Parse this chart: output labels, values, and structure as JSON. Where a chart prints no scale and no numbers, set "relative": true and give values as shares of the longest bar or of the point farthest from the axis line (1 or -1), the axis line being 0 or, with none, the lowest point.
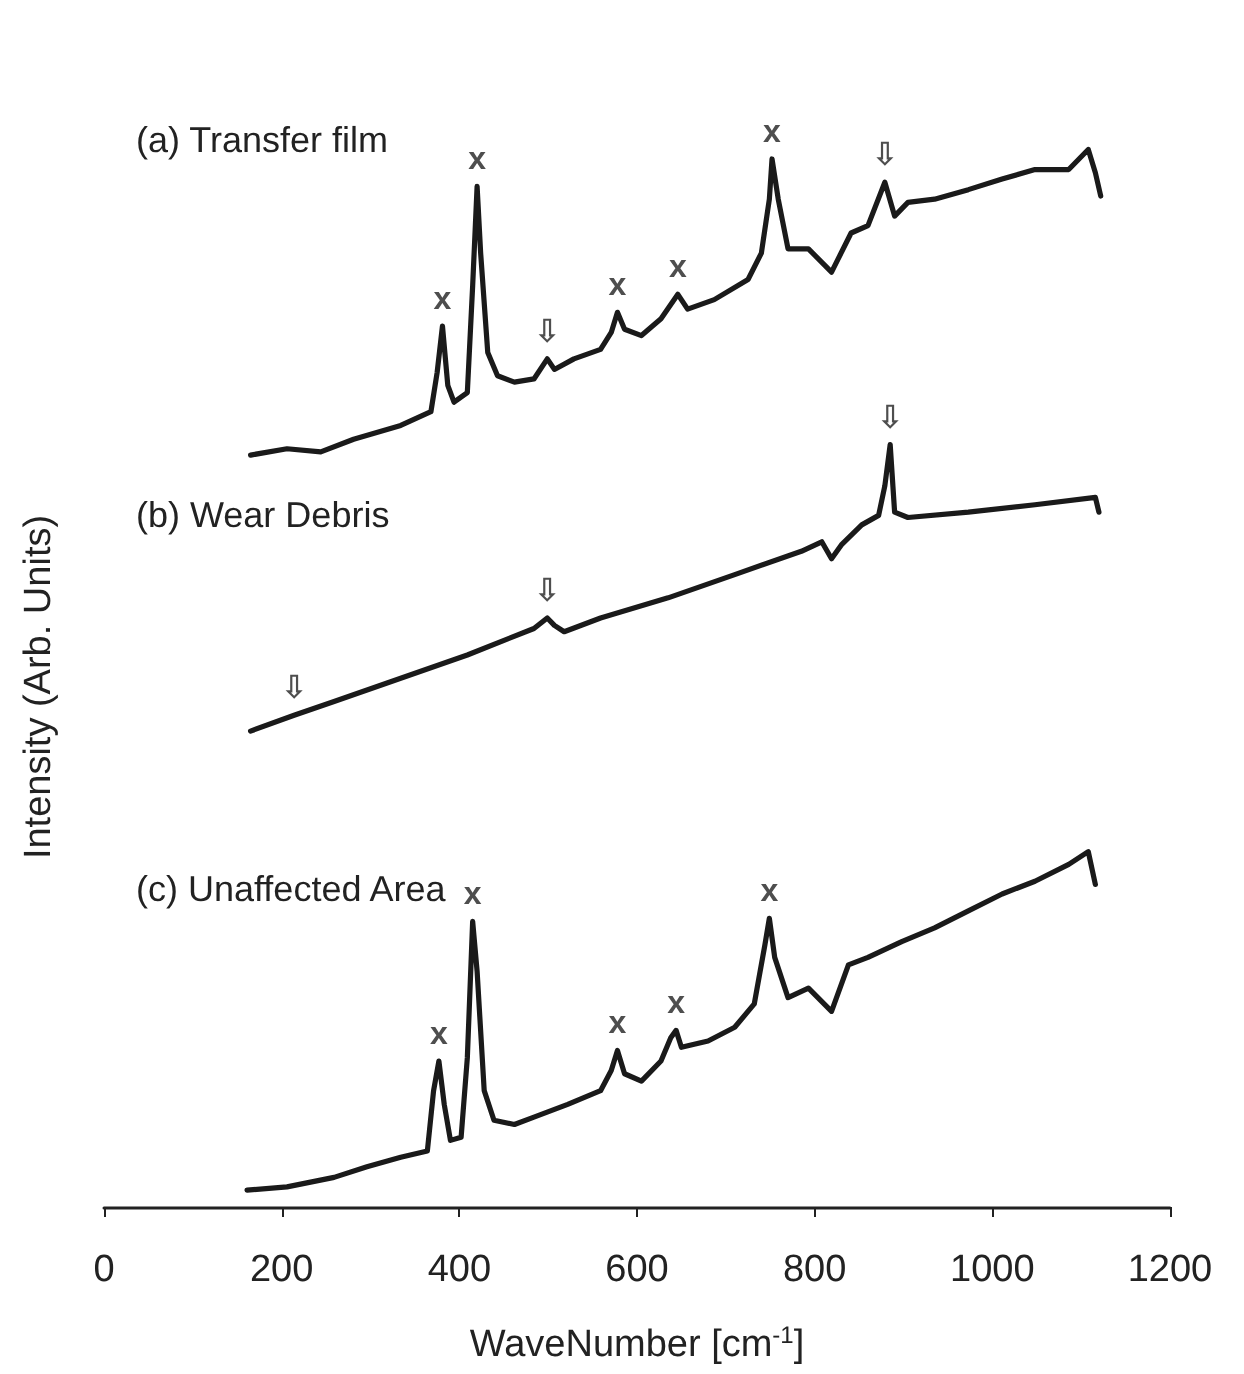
{
  "chart_data": {
    "type": "line",
    "relative": true,
    "xlabel": "WaveNumber [cm$^{-1}$]",
    "ylabel": "Intensity (Arb. Units)",
    "xlim": [
      0,
      1200
    ],
    "xticks": [
      0,
      200,
      400,
      600,
      800,
      1000,
      1200
    ],
    "grid": false,
    "marker": "none",
    "line_style": "solid",
    "series": [
      {
        "color": "#1a1a1a",
        "x": [
          165,
          206,
          244,
          281,
          334,
          368,
          375,
          381,
          387,
          394,
          409,
          415,
          420,
          424,
          432,
          443,
          462,
          484,
          499,
          507,
          529,
          559,
          571,
          578,
          586,
          605,
          627,
          646,
          657,
          687,
          725,
          740,
          749,
          752,
          759,
          770,
          793,
          819,
          841,
          860,
          879,
          890,
          905,
          935,
          973,
          1011,
          1048,
          1086,
          1108,
          1116,
          1122
        ],
        "values": [
          0.711,
          0.717,
          0.714,
          0.726,
          0.739,
          0.752,
          0.789,
          0.833,
          0.777,
          0.761,
          0.77,
          0.871,
          0.965,
          0.902,
          0.808,
          0.786,
          0.78,
          0.783,
          0.802,
          0.792,
          0.802,
          0.811,
          0.827,
          0.846,
          0.83,
          0.824,
          0.84,
          0.863,
          0.849,
          0.858,
          0.877,
          0.902,
          0.953,
          0.991,
          0.953,
          0.906,
          0.906,
          0.884,
          0.921,
          0.928,
          0.969,
          0.937,
          0.95,
          0.953,
          0.962,
          0.972,
          0.981,
          0.981,
          1.0,
          0.978,
          0.956
        ]
      },
      {
        "color": "#1a1a1a",
        "x": [
          165,
          214,
          259,
          334,
          409,
          484,
          499,
          507,
          518,
          559,
          635,
          710,
          785,
          808,
          819,
          830,
          853,
          872,
          879,
          885,
          890,
          905,
          973,
          1048,
          1116,
          1120
        ],
        "values": [
          0.45,
          0.465,
          0.478,
          0.5,
          0.522,
          0.547,
          0.557,
          0.55,
          0.544,
          0.557,
          0.576,
          0.598,
          0.62,
          0.629,
          0.613,
          0.626,
          0.645,
          0.654,
          0.682,
          0.721,
          0.657,
          0.652,
          0.657,
          0.664,
          0.671,
          0.657
        ]
      },
      {
        "color": "#1a1a1a",
        "x": [
          161,
          206,
          259,
          296,
          334,
          364,
          371,
          377,
          383,
          390,
          402,
          409,
          415,
          420,
          428,
          439,
          462,
          484,
          522,
          559,
          571,
          578,
          586,
          605,
          627,
          638,
          644,
          650,
          680,
          710,
          732,
          744,
          749,
          755,
          770,
          793,
          819,
          838,
          860,
          898,
          935,
          973,
          1011,
          1048,
          1086,
          1108,
          1116
        ],
        "values": [
          0.016,
          0.019,
          0.028,
          0.038,
          0.047,
          0.053,
          0.11,
          0.138,
          0.097,
          0.063,
          0.066,
          0.141,
          0.27,
          0.223,
          0.11,
          0.082,
          0.078,
          0.085,
          0.097,
          0.11,
          0.129,
          0.148,
          0.126,
          0.119,
          0.138,
          0.16,
          0.167,
          0.151,
          0.157,
          0.17,
          0.192,
          0.248,
          0.273,
          0.236,
          0.198,
          0.207,
          0.185,
          0.229,
          0.236,
          0.251,
          0.264,
          0.28,
          0.296,
          0.308,
          0.324,
          0.336,
          0.305
        ]
      }
    ],
    "annotations": [
      "(a) Transfer film",
      "(b) Wear Debris",
      "(c) Unaffected Area",
      {
        "text": "x",
        "x": 381,
        "y": 0.833
      },
      {
        "text": "x",
        "x": 420,
        "y": 0.965
      },
      {
        "text": "x",
        "x": 578,
        "y": 0.846
      },
      {
        "text": "x",
        "x": 646,
        "y": 0.863
      },
      {
        "text": "x",
        "x": 752,
        "y": 0.991
      },
      {
        "text": "⇩",
        "x": 499,
        "y": 0.802
      },
      {
        "text": "⇩",
        "x": 879,
        "y": 0.969
      },
      {
        "text": "⇩",
        "x": 214,
        "y": 0.465
      },
      {
        "text": "⇩",
        "x": 499,
        "y": 0.557
      },
      {
        "text": "⇩",
        "x": 885,
        "y": 0.721
      },
      {
        "text": "x",
        "x": 377,
        "y": 0.138
      },
      {
        "text": "x",
        "x": 415,
        "y": 0.27
      },
      {
        "text": "x",
        "x": 578,
        "y": 0.148
      },
      {
        "text": "x",
        "x": 644,
        "y": 0.167
      },
      {
        "text": "x",
        "x": 749,
        "y": 0.273
      }
    ]
  }
}
